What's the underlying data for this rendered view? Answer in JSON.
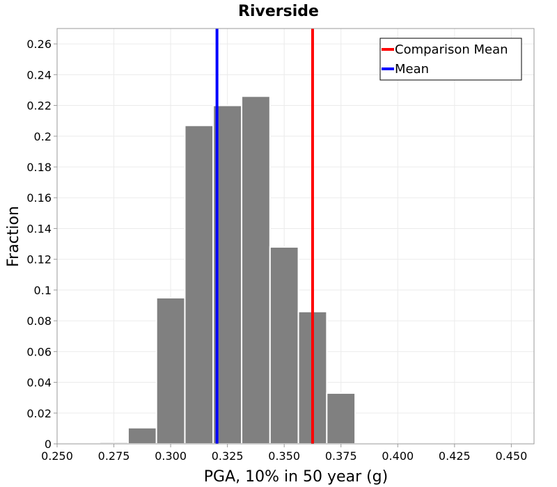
{
  "chart_data": {
    "type": "bar",
    "title": "Riverside",
    "xlabel": "PGA, 10% in 50 year (g)",
    "ylabel": "Fraction",
    "xlim": [
      0.25,
      0.46
    ],
    "ylim": [
      0,
      0.27
    ],
    "xticks": [
      0.25,
      0.275,
      0.3,
      0.325,
      0.35,
      0.375,
      0.4,
      0.425,
      0.45
    ],
    "xtick_labels": [
      "0.250",
      "0.275",
      "0.300",
      "0.325",
      "0.350",
      "0.375",
      "0.400",
      "0.425",
      "0.450"
    ],
    "yticks": [
      0,
      0.02,
      0.04,
      0.06,
      0.08,
      0.1,
      0.12,
      0.14,
      0.16,
      0.18,
      0.2,
      0.22,
      0.24,
      0.26
    ],
    "ytick_labels": [
      "0",
      "0.02",
      "0.04",
      "0.06",
      "0.08",
      "0.1",
      "0.12",
      "0.14",
      "0.16",
      "0.18",
      "0.2",
      "0.22",
      "0.24",
      "0.26"
    ],
    "bin_width": 0.0125,
    "bins": [
      {
        "x": 0.2625,
        "value": 0.0
      },
      {
        "x": 0.275,
        "value": 0.001
      },
      {
        "x": 0.2875,
        "value": 0.0105
      },
      {
        "x": 0.3,
        "value": 0.095
      },
      {
        "x": 0.3125,
        "value": 0.207
      },
      {
        "x": 0.325,
        "value": 0.22
      },
      {
        "x": 0.3375,
        "value": 0.226
      },
      {
        "x": 0.35,
        "value": 0.128
      },
      {
        "x": 0.3625,
        "value": 0.086
      },
      {
        "x": 0.375,
        "value": 0.033
      },
      {
        "x": 0.3875,
        "value": 0.0005
      }
    ],
    "bar_color": "#808080",
    "vlines": [
      {
        "name": "Comparison Mean",
        "x": 0.3625,
        "color": "#ff0000"
      },
      {
        "name": "Mean",
        "x": 0.3204,
        "color": "#0000ff"
      }
    ],
    "legend": {
      "position": "top-right",
      "entries": [
        "Comparison Mean",
        "Mean"
      ]
    },
    "grid": true
  }
}
